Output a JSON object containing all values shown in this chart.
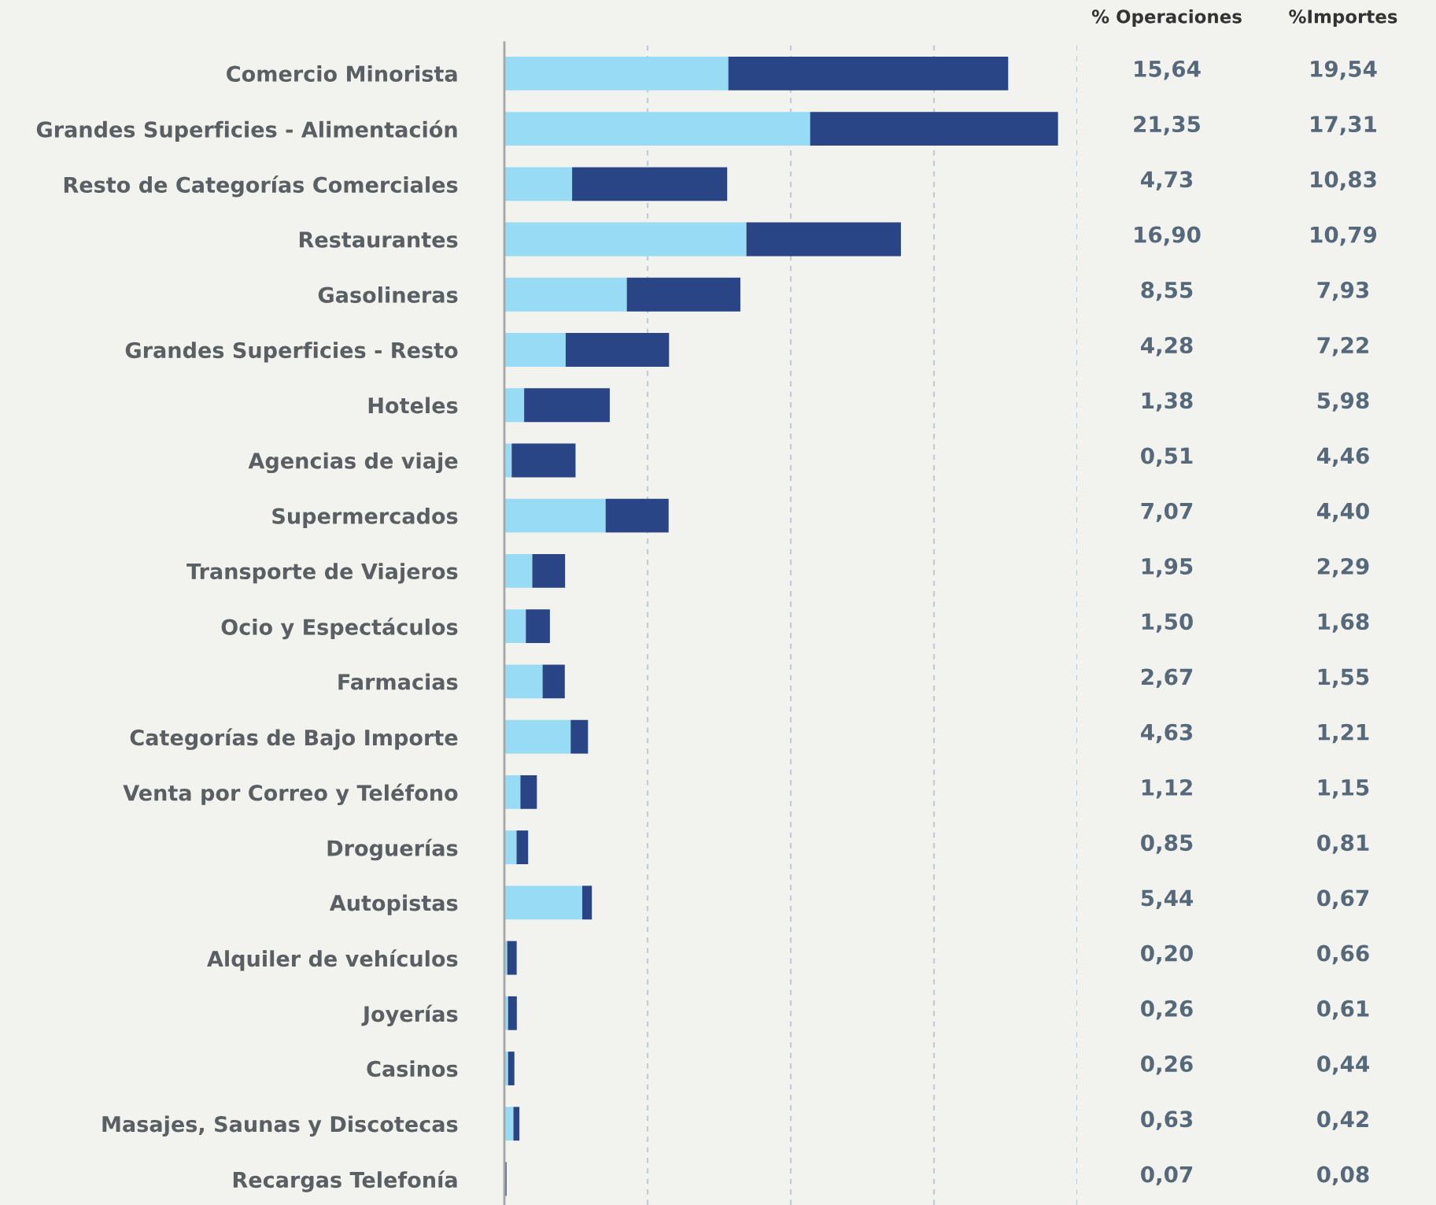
{
  "chart_data": {
    "type": "bar",
    "orientation": "horizontal",
    "stacked": true,
    "categories": [
      "Comercio Minorista",
      "Grandes Superficies - Alimentación",
      "Resto de Categorías Comerciales",
      "Restaurantes",
      "Gasolineras",
      "Grandes Superficies - Resto",
      "Hoteles",
      "Agencias de viaje",
      "Supermercados",
      "Transporte de Viajeros",
      "Ocio y Espectáculos",
      "Farmacias",
      "Categorías de Bajo Importe",
      "Venta por Correo y Teléfono",
      "Droguerías",
      "Autopistas",
      "Alquiler de vehículos",
      "Joyerías",
      "Casinos",
      "Masajes, Saunas y Discotecas",
      "Recargas Telefonía"
    ],
    "series": [
      {
        "name": "% Operaciones",
        "color": "#97dbf5",
        "values": [
          15.64,
          21.35,
          4.73,
          16.9,
          8.55,
          4.28,
          1.38,
          0.51,
          7.07,
          1.95,
          1.5,
          2.67,
          4.63,
          1.12,
          0.85,
          5.44,
          0.2,
          0.26,
          0.26,
          0.63,
          0.07
        ],
        "value_labels": [
          "15,64",
          "21,35",
          "4,73",
          "16,90",
          "8,55",
          "4,28",
          "1,38",
          "0,51",
          "7,07",
          "1,95",
          "1,50",
          "2,67",
          "4,63",
          "1,12",
          "0,85",
          "5,44",
          "0,20",
          "0,26",
          "0,26",
          "0,63",
          "0,07"
        ]
      },
      {
        "name": "%Importes",
        "color": "#2a4586",
        "values": [
          19.54,
          17.31,
          10.83,
          10.79,
          7.93,
          7.22,
          5.98,
          4.46,
          4.4,
          2.29,
          1.68,
          1.55,
          1.21,
          1.15,
          0.81,
          0.67,
          0.66,
          0.61,
          0.44,
          0.42,
          0.08
        ],
        "value_labels": [
          "19,54",
          "17,31",
          "10,83",
          "10,79",
          "7,93",
          "7,22",
          "5,98",
          "4,46",
          "4,40",
          "2,29",
          "1,68",
          "1,55",
          "1,21",
          "1,15",
          "0,81",
          "0,67",
          "0,66",
          "0,61",
          "0,44",
          "0,42",
          "0,08"
        ]
      }
    ],
    "xlim": [
      0,
      40
    ],
    "xticks": [
      {
        "value": 10,
        "label": null
      },
      {
        "value": 20,
        "label": null
      },
      {
        "value": 30,
        "label": null
      },
      {
        "value": 40,
        "label": null
      }
    ],
    "grid": "x",
    "tick_labels": "y",
    "legend": false
  }
}
